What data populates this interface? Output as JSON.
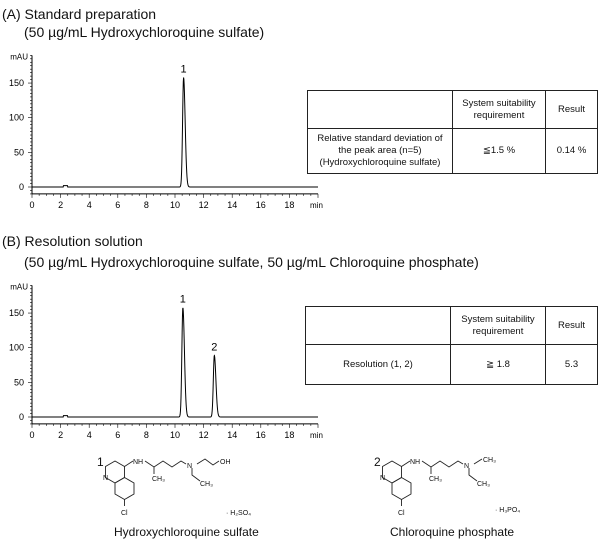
{
  "sectionA": {
    "title": "(A) Standard preparation",
    "subtitle": "(50 µg/mL Hydroxychloroquine sulfate)",
    "table": {
      "headers": [
        "",
        "System  suitability requirement",
        "Result"
      ],
      "rows": [
        [
          "Relative standard deviation of the peak area (n=5) (Hydroxychloroquine sulfate)",
          "≦1.5 %",
          "0.14 %"
        ]
      ]
    }
  },
  "sectionB": {
    "title": "(B) Resolution solution",
    "subtitle": "(50 µg/mL Hydroxychloroquine sulfate, 50 µg/mL Chloroquine phosphate)",
    "table": {
      "headers": [
        "",
        "System  suitability requirement",
        "Result"
      ],
      "rows": [
        [
          "Resolution (1, 2)",
          "≧  1.8",
          "5.3"
        ]
      ]
    }
  },
  "chart_data": [
    {
      "type": "line",
      "ylabel": "mAU",
      "xlabel": "min",
      "xlim": [
        0,
        20
      ],
      "ylim": [
        -10,
        190
      ],
      "xticks": [
        0,
        2,
        4,
        6,
        8,
        10,
        12,
        14,
        16,
        18
      ],
      "yticks": [
        0,
        50,
        100,
        150
      ],
      "grid": false,
      "color": "#000000",
      "peaks": [
        {
          "label": "1",
          "rt": 10.6,
          "height": 158
        }
      ]
    },
    {
      "type": "line",
      "ylabel": "mAU",
      "xlabel": "min",
      "xlim": [
        0,
        20
      ],
      "ylim": [
        -10,
        190
      ],
      "xticks": [
        0,
        2,
        4,
        6,
        8,
        10,
        12,
        14,
        16,
        18
      ],
      "yticks": [
        0,
        50,
        100,
        150
      ],
      "grid": false,
      "color": "#000000",
      "peaks": [
        {
          "label": "1",
          "rt": 10.55,
          "height": 158
        },
        {
          "label": "2",
          "rt": 12.75,
          "height": 89
        }
      ]
    }
  ],
  "structures": [
    {
      "number": "1",
      "name": "Hydroxychloroquine sulfate",
      "salt": "· H₂SO₄",
      "atoms": {
        "nh": "NH",
        "n_ring": "N",
        "n_amine": "N",
        "ch3a": "CH₃",
        "ch3b": "CH₃",
        "oh": "OH",
        "cl": "Cl"
      }
    },
    {
      "number": "2",
      "name": "Chloroquine phosphate",
      "salt": "· H₃PO₄",
      "atoms": {
        "nh": "NH",
        "n_ring": "N",
        "n_amine": "N",
        "ch3a": "CH₃",
        "ch3b": "CH₃",
        "ch3c": "CH₃",
        "cl": "Cl"
      }
    }
  ]
}
